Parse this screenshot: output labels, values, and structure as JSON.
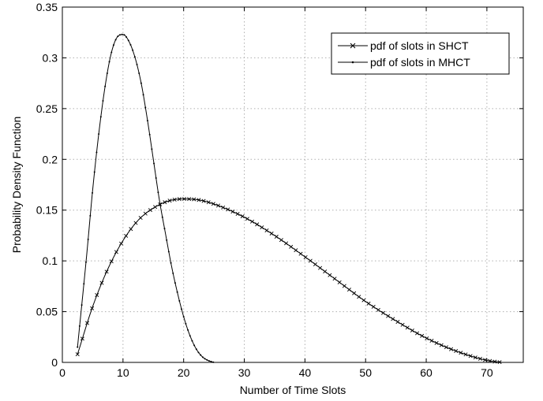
{
  "chart_data": {
    "type": "line",
    "title": "",
    "xlabel": "Number of Time Slots",
    "ylabel": "Probability Density Function",
    "xlim": [
      0,
      76
    ],
    "ylim": [
      0,
      0.35
    ],
    "xticks": [
      "0",
      "10",
      "20",
      "30",
      "40",
      "50",
      "60",
      "70"
    ],
    "yticks": [
      "0",
      "0.05",
      "0.1",
      "0.15",
      "0.2",
      "0.25",
      "0.3",
      "0.35"
    ],
    "grid": true,
    "legend_position": "top-right",
    "series": [
      {
        "name": "pdf of slots in SHCT",
        "marker": "x",
        "color": "#000000",
        "x": [
          2.5,
          5,
          7.5,
          10,
          12.5,
          15,
          17.5,
          20,
          22.5,
          25,
          30,
          35,
          40,
          45,
          50,
          55,
          60,
          65,
          70,
          72.5
        ],
        "y": [
          0.008,
          0.055,
          0.092,
          0.12,
          0.14,
          0.152,
          0.159,
          0.161,
          0.16,
          0.156,
          0.143,
          0.125,
          0.104,
          0.082,
          0.06,
          0.041,
          0.024,
          0.011,
          0.002,
          0.0
        ]
      },
      {
        "name": "pdf of slots in MHCT",
        "marker": "dot",
        "color": "#000000",
        "x": [
          2.5,
          4,
          5,
          6,
          7,
          8,
          9,
          10,
          11,
          12,
          13,
          14,
          15,
          16,
          17,
          18,
          19,
          20,
          21,
          22,
          23,
          24,
          25
        ],
        "y": [
          0.015,
          0.105,
          0.17,
          0.225,
          0.27,
          0.303,
          0.32,
          0.323,
          0.316,
          0.3,
          0.275,
          0.24,
          0.2,
          0.16,
          0.127,
          0.095,
          0.068,
          0.045,
          0.027,
          0.014,
          0.006,
          0.002,
          0.0
        ]
      }
    ]
  }
}
